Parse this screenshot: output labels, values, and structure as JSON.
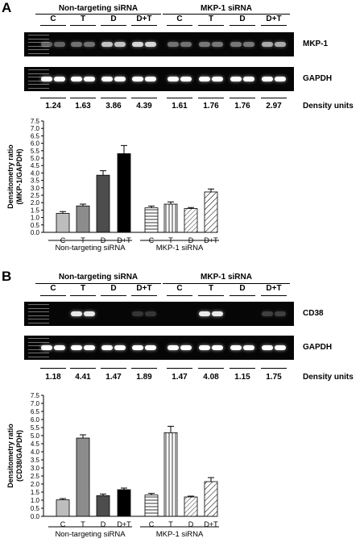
{
  "panels": [
    {
      "letter": "A",
      "groups": [
        "Non-targeting siRNA",
        "MKP-1 siRNA"
      ],
      "lanes": [
        "C",
        "T",
        "D",
        "D+T",
        "C",
        "T",
        "D",
        "D+T"
      ],
      "gels": [
        {
          "label": "MKP-1",
          "intensity": [
            0.55,
            0.6,
            0.85,
            0.9,
            0.6,
            0.62,
            0.62,
            0.78
          ]
        },
        {
          "label": "GAPDH",
          "intensity": [
            1,
            1,
            1,
            1,
            1,
            1,
            1,
            1
          ]
        }
      ],
      "density_values": [
        "1.24",
        "1.63",
        "3.86",
        "4.39",
        "1.61",
        "1.76",
        "1.76",
        "2.97"
      ],
      "density_label": "Density units"
    },
    {
      "letter": "B",
      "groups": [
        "Non-targeting siRNA",
        "MKP-1 siRNA"
      ],
      "lanes": [
        "C",
        "T",
        "D",
        "D+T",
        "C",
        "T",
        "D",
        "D+T"
      ],
      "gels": [
        {
          "label": "CD38",
          "intensity": [
            0.05,
            0.95,
            0.05,
            0.35,
            0.05,
            0.95,
            0.05,
            0.4
          ]
        },
        {
          "label": "GAPDH",
          "intensity": [
            1,
            1,
            1,
            1,
            1,
            1,
            1,
            1
          ]
        }
      ],
      "density_values": [
        "1.18",
        "4.41",
        "1.47",
        "1.89",
        "1.47",
        "4.08",
        "1.15",
        "1.75"
      ],
      "density_label": "Density units"
    }
  ],
  "chart_data": [
    {
      "type": "bar",
      "ylabel_line1": "Densitometry ratio",
      "ylabel_line2": "(MKP-1/GAPDH)",
      "ylim": [
        0,
        7.5
      ],
      "yticks": [
        "0.0",
        "0.5",
        "1.0",
        "1.5",
        "2.0",
        "2.5",
        "3.0",
        "3.5",
        "4.0",
        "4.5",
        "5.0",
        "5.5",
        "6.0",
        "6.5",
        "7.0",
        "7.5"
      ],
      "categories": [
        "C",
        "T",
        "D",
        "D+T",
        "C",
        "T",
        "D",
        "D+T"
      ],
      "values": [
        1.28,
        1.78,
        3.85,
        5.3,
        1.65,
        1.9,
        1.6,
        2.72
      ],
      "errors": [
        0.12,
        0.12,
        0.3,
        0.55,
        0.12,
        0.15,
        0.07,
        0.2
      ],
      "fills": [
        "#bdbdbd",
        "#8c8c8c",
        "#4d4d4d",
        "#000000",
        "hlines",
        "vlines",
        "dlines",
        "dlines2"
      ],
      "group_labels": [
        "Non-targeting siRNA",
        "MKP-1 siRNA"
      ]
    },
    {
      "type": "bar",
      "ylabel_line1": "Densitometry ratio",
      "ylabel_line2": "(CD38/GAPDH)",
      "ylim": [
        0,
        7.5
      ],
      "yticks": [
        "0.0",
        "0.5",
        "1.0",
        "1.5",
        "2.0",
        "2.5",
        "3.0",
        "3.5",
        "4.0",
        "4.5",
        "5.0",
        "5.5",
        "6.0",
        "6.5",
        "7.0",
        "7.5"
      ],
      "categories": [
        "C",
        "T",
        "D",
        "D+T",
        "C",
        "T",
        "D",
        "D+T"
      ],
      "values": [
        1.02,
        4.85,
        1.28,
        1.65,
        1.32,
        5.18,
        1.2,
        2.15
      ],
      "errors": [
        0.08,
        0.2,
        0.1,
        0.1,
        0.1,
        0.4,
        0.05,
        0.25
      ],
      "fills": [
        "#bdbdbd",
        "#8c8c8c",
        "#4d4d4d",
        "#000000",
        "hlines",
        "vlines",
        "dlines",
        "dlines2"
      ],
      "group_labels": [
        "Non-targeting siRNA",
        "MKP-1 siRNA"
      ]
    }
  ]
}
